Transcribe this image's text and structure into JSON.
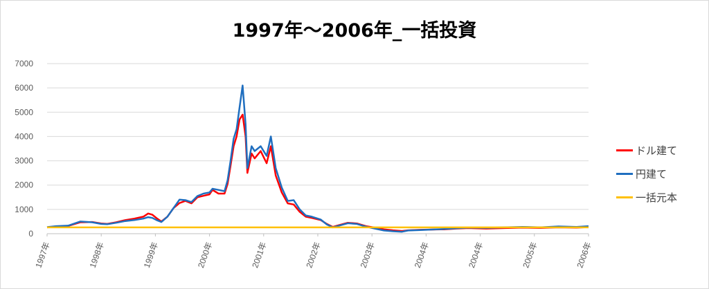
{
  "chart_data": {
    "type": "line",
    "title": "1997年～2006年_一括投資",
    "xlabel": "",
    "ylabel": "",
    "ylim": [
      0,
      7000
    ],
    "yticks": [
      0,
      1000,
      2000,
      3000,
      4000,
      5000,
      6000,
      7000
    ],
    "xlim": [
      1997.0,
      2006.0
    ],
    "xtick_labels": [
      "1997年",
      "1998年",
      "1999年",
      "2000年",
      "2001年",
      "2002年",
      "2003年",
      "2004年",
      "2004年",
      "2005年",
      "2006年"
    ],
    "grid": true,
    "legend_position": "right",
    "series": [
      {
        "name": "ドル建て",
        "color": "#ff0000",
        "points": [
          [
            1997.0,
            260
          ],
          [
            1997.15,
            300
          ],
          [
            1997.35,
            320
          ],
          [
            1997.55,
            470
          ],
          [
            1997.75,
            480
          ],
          [
            1997.9,
            420
          ],
          [
            1998.0,
            400
          ],
          [
            1998.15,
            470
          ],
          [
            1998.3,
            560
          ],
          [
            1998.45,
            620
          ],
          [
            1998.6,
            700
          ],
          [
            1998.68,
            830
          ],
          [
            1998.75,
            780
          ],
          [
            1998.82,
            640
          ],
          [
            1998.9,
            500
          ],
          [
            1999.0,
            700
          ],
          [
            1999.1,
            1050
          ],
          [
            1999.2,
            1260
          ],
          [
            1999.3,
            1350
          ],
          [
            1999.4,
            1250
          ],
          [
            1999.5,
            1500
          ],
          [
            1999.6,
            1560
          ],
          [
            1999.7,
            1620
          ],
          [
            1999.75,
            1800
          ],
          [
            1999.85,
            1650
          ],
          [
            1999.95,
            1650
          ],
          [
            2000.0,
            2050
          ],
          [
            2000.05,
            2800
          ],
          [
            2000.1,
            3600
          ],
          [
            2000.15,
            4000
          ],
          [
            2000.2,
            4700
          ],
          [
            2000.25,
            4900
          ],
          [
            2000.3,
            4000
          ],
          [
            2000.33,
            2500
          ],
          [
            2000.4,
            3300
          ],
          [
            2000.45,
            3100
          ],
          [
            2000.55,
            3400
          ],
          [
            2000.65,
            2900
          ],
          [
            2000.72,
            3600
          ],
          [
            2000.8,
            2400
          ],
          [
            2000.9,
            1700
          ],
          [
            2001.0,
            1250
          ],
          [
            2001.1,
            1200
          ],
          [
            2001.2,
            900
          ],
          [
            2001.3,
            700
          ],
          [
            2001.4,
            650
          ],
          [
            2001.55,
            560
          ],
          [
            2001.65,
            400
          ],
          [
            2001.75,
            280
          ],
          [
            2001.85,
            350
          ],
          [
            2002.0,
            450
          ],
          [
            2002.15,
            420
          ],
          [
            2002.3,
            310
          ],
          [
            2002.45,
            250
          ],
          [
            2002.6,
            180
          ],
          [
            2002.75,
            140
          ],
          [
            2002.9,
            110
          ],
          [
            2003.0,
            140
          ],
          [
            2003.2,
            160
          ],
          [
            2003.4,
            170
          ],
          [
            2003.6,
            180
          ],
          [
            2003.8,
            210
          ],
          [
            2004.0,
            230
          ],
          [
            2004.3,
            210
          ],
          [
            2004.6,
            230
          ],
          [
            2004.9,
            250
          ],
          [
            2005.2,
            240
          ],
          [
            2005.5,
            260
          ],
          [
            2005.8,
            250
          ],
          [
            2006.0,
            270
          ]
        ]
      },
      {
        "name": "円建て",
        "color": "#1f6ebf",
        "points": [
          [
            1997.0,
            270
          ],
          [
            1997.15,
            310
          ],
          [
            1997.35,
            330
          ],
          [
            1997.55,
            500
          ],
          [
            1997.75,
            470
          ],
          [
            1997.9,
            400
          ],
          [
            1998.0,
            390
          ],
          [
            1998.15,
            450
          ],
          [
            1998.3,
            520
          ],
          [
            1998.45,
            560
          ],
          [
            1998.6,
            620
          ],
          [
            1998.68,
            680
          ],
          [
            1998.75,
            650
          ],
          [
            1998.82,
            560
          ],
          [
            1998.9,
            480
          ],
          [
            1999.0,
            700
          ],
          [
            1999.1,
            1050
          ],
          [
            1999.2,
            1400
          ],
          [
            1999.3,
            1380
          ],
          [
            1999.4,
            1300
          ],
          [
            1999.5,
            1550
          ],
          [
            1999.6,
            1650
          ],
          [
            1999.7,
            1700
          ],
          [
            1999.75,
            1850
          ],
          [
            1999.85,
            1800
          ],
          [
            1999.95,
            1750
          ],
          [
            2000.0,
            2200
          ],
          [
            2000.05,
            3000
          ],
          [
            2000.1,
            3900
          ],
          [
            2000.15,
            4300
          ],
          [
            2000.2,
            5200
          ],
          [
            2000.25,
            6100
          ],
          [
            2000.3,
            4500
          ],
          [
            2000.33,
            2700
          ],
          [
            2000.4,
            3600
          ],
          [
            2000.45,
            3400
          ],
          [
            2000.55,
            3600
          ],
          [
            2000.65,
            3200
          ],
          [
            2000.72,
            4000
          ],
          [
            2000.8,
            2700
          ],
          [
            2000.9,
            1900
          ],
          [
            2001.0,
            1350
          ],
          [
            2001.1,
            1380
          ],
          [
            2001.2,
            1000
          ],
          [
            2001.3,
            750
          ],
          [
            2001.4,
            700
          ],
          [
            2001.55,
            580
          ],
          [
            2001.65,
            380
          ],
          [
            2001.75,
            260
          ],
          [
            2001.85,
            330
          ],
          [
            2002.0,
            430
          ],
          [
            2002.15,
            400
          ],
          [
            2002.3,
            290
          ],
          [
            2002.45,
            210
          ],
          [
            2002.6,
            130
          ],
          [
            2002.75,
            100
          ],
          [
            2002.9,
            80
          ],
          [
            2003.0,
            130
          ],
          [
            2003.2,
            150
          ],
          [
            2003.4,
            170
          ],
          [
            2003.6,
            190
          ],
          [
            2003.8,
            220
          ],
          [
            2004.0,
            250
          ],
          [
            2004.3,
            240
          ],
          [
            2004.6,
            260
          ],
          [
            2004.9,
            280
          ],
          [
            2005.2,
            260
          ],
          [
            2005.5,
            300
          ],
          [
            2005.8,
            280
          ],
          [
            2006.0,
            310
          ]
        ]
      },
      {
        "name": "一括元本",
        "color": "#ffc000",
        "points": [
          [
            1997.0,
            260
          ],
          [
            2006.0,
            260
          ]
        ]
      }
    ]
  }
}
